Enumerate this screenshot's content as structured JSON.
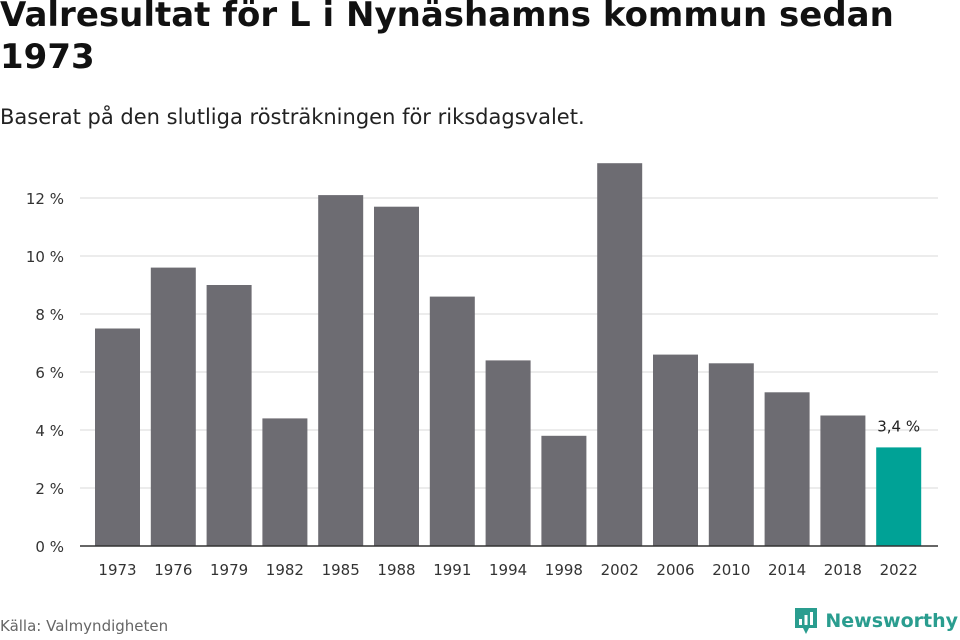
{
  "header": {
    "title": "Valresultat för L i Nynäshamns kommun sedan 1973",
    "subtitle": "Baserat på den slutliga rösträkningen för riksdagsvalet."
  },
  "footer": {
    "source": "Källa: Valmyndigheten",
    "brand": "Newsworthy",
    "brand_icon": "newsworthy-logo-icon"
  },
  "colors": {
    "bar": "#6d6c72",
    "highlight": "#00a296",
    "grid": "#d9d9d9",
    "axis": "#333333"
  },
  "chart_data": {
    "type": "bar",
    "categories": [
      "1973",
      "1976",
      "1979",
      "1982",
      "1985",
      "1988",
      "1991",
      "1994",
      "1998",
      "2002",
      "2006",
      "2010",
      "2014",
      "2018",
      "2022"
    ],
    "values": [
      7.5,
      9.6,
      9.0,
      4.4,
      12.1,
      11.7,
      8.6,
      6.4,
      3.8,
      13.2,
      6.6,
      6.3,
      5.3,
      4.5,
      3.4
    ],
    "ylim": [
      0,
      13.5
    ],
    "yticks": [
      0,
      2,
      4,
      6,
      8,
      10,
      12
    ],
    "ytick_labels": [
      "0 %",
      "2 %",
      "4 %",
      "6 %",
      "8 %",
      "10 %",
      "12 %"
    ],
    "highlight_index": 14,
    "data_label": "3,4 %",
    "grid": true
  }
}
